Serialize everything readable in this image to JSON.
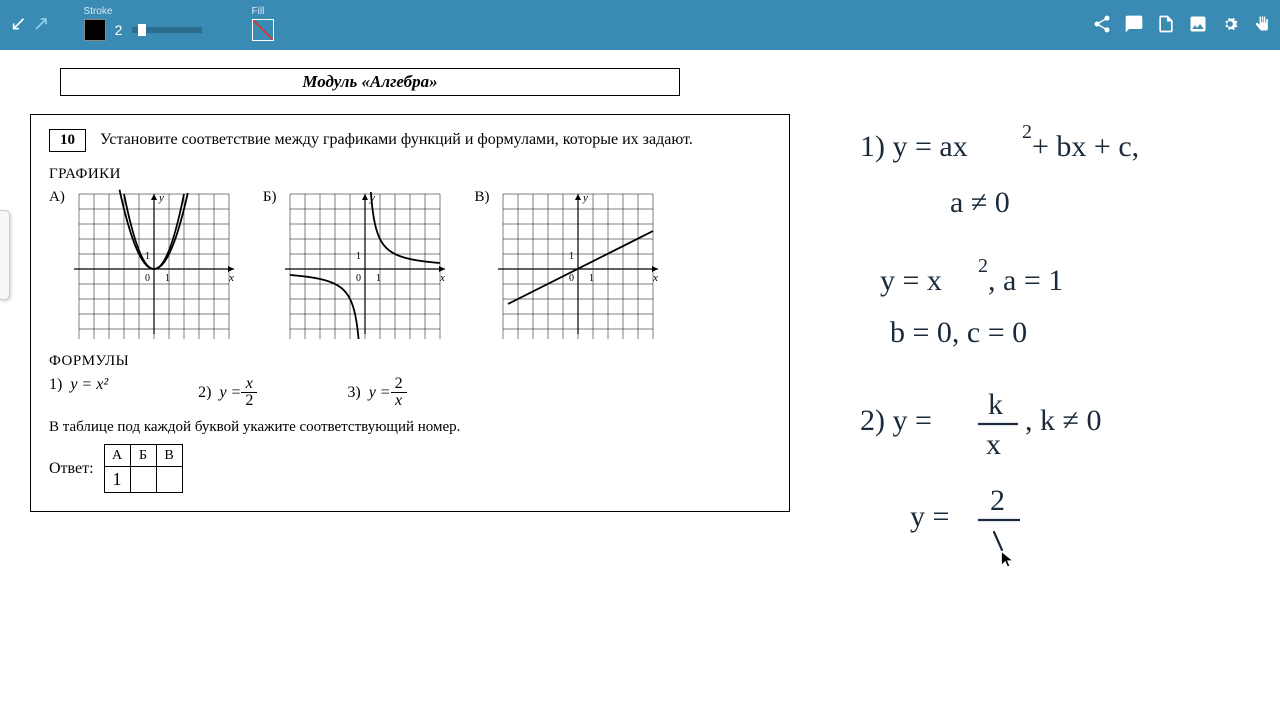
{
  "toolbar": {
    "stroke_label": "Stroke",
    "fill_label": "Fill",
    "stroke_color": "#000000",
    "stroke_width": "2",
    "bg": "#3a8bb3"
  },
  "module_title": "Модуль «Алгебра»",
  "problem": {
    "number": "10",
    "prompt": "Установите соответствие между графиками функций и формулами, которые их задают.",
    "section_graphs": "ГРАФИКИ",
    "section_formulas": "ФОРМУЛЫ",
    "note": "В таблице под каждой буквой укажите соответствующий номер.",
    "answer_label": "Ответ:",
    "letters": [
      "А)",
      "Б)",
      "В)"
    ],
    "table_headers": [
      "А",
      "Б",
      "В"
    ],
    "table_values": [
      "1",
      "",
      ""
    ],
    "formulas": {
      "f1_num": "1)",
      "f1": "y = x²",
      "f2_num": "2)",
      "f2_pre": "y = ",
      "f2_top": "x",
      "f2_bot": "2",
      "f3_num": "3)",
      "f3_pre": "y = ",
      "f3_top": "2",
      "f3_bot": "x"
    },
    "graph_style": {
      "grid_color": "#000000",
      "axis_label_x": "x",
      "axis_label_y": "y",
      "cells": 10,
      "origin_label_0": "0",
      "origin_label_1": "1"
    },
    "graphs": {
      "A": {
        "type": "parabola",
        "fn": "y=x^2",
        "xrange": [
          -5,
          5
        ]
      },
      "B": {
        "type": "hyperbola",
        "fn": "y=2/x",
        "xrange": [
          -5,
          5
        ]
      },
      "C": {
        "type": "line",
        "fn": "y=x/2",
        "xrange": [
          -5,
          5
        ]
      }
    }
  },
  "handwriting": {
    "lines": [
      "1) y = ax² + bx + c,",
      "a ≠ 0",
      "y = x², a = 1",
      "b = 0,  c = 0",
      "2) y = k / x,  k ≠ 0",
      "y = 2 /"
    ],
    "ink_color": "#1a2a3a",
    "stroke_width": 2.2
  }
}
